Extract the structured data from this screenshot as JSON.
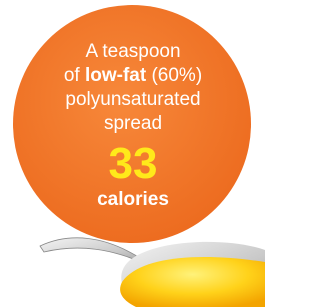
{
  "text": {
    "line1": "A teaspoon",
    "line2_of": "of",
    "line2_bold": "low-fat",
    "line2_pct": "(60%)",
    "line3": "polyunsaturated",
    "line4": "spread"
  },
  "amount": 33,
  "unit": "calories"
}
